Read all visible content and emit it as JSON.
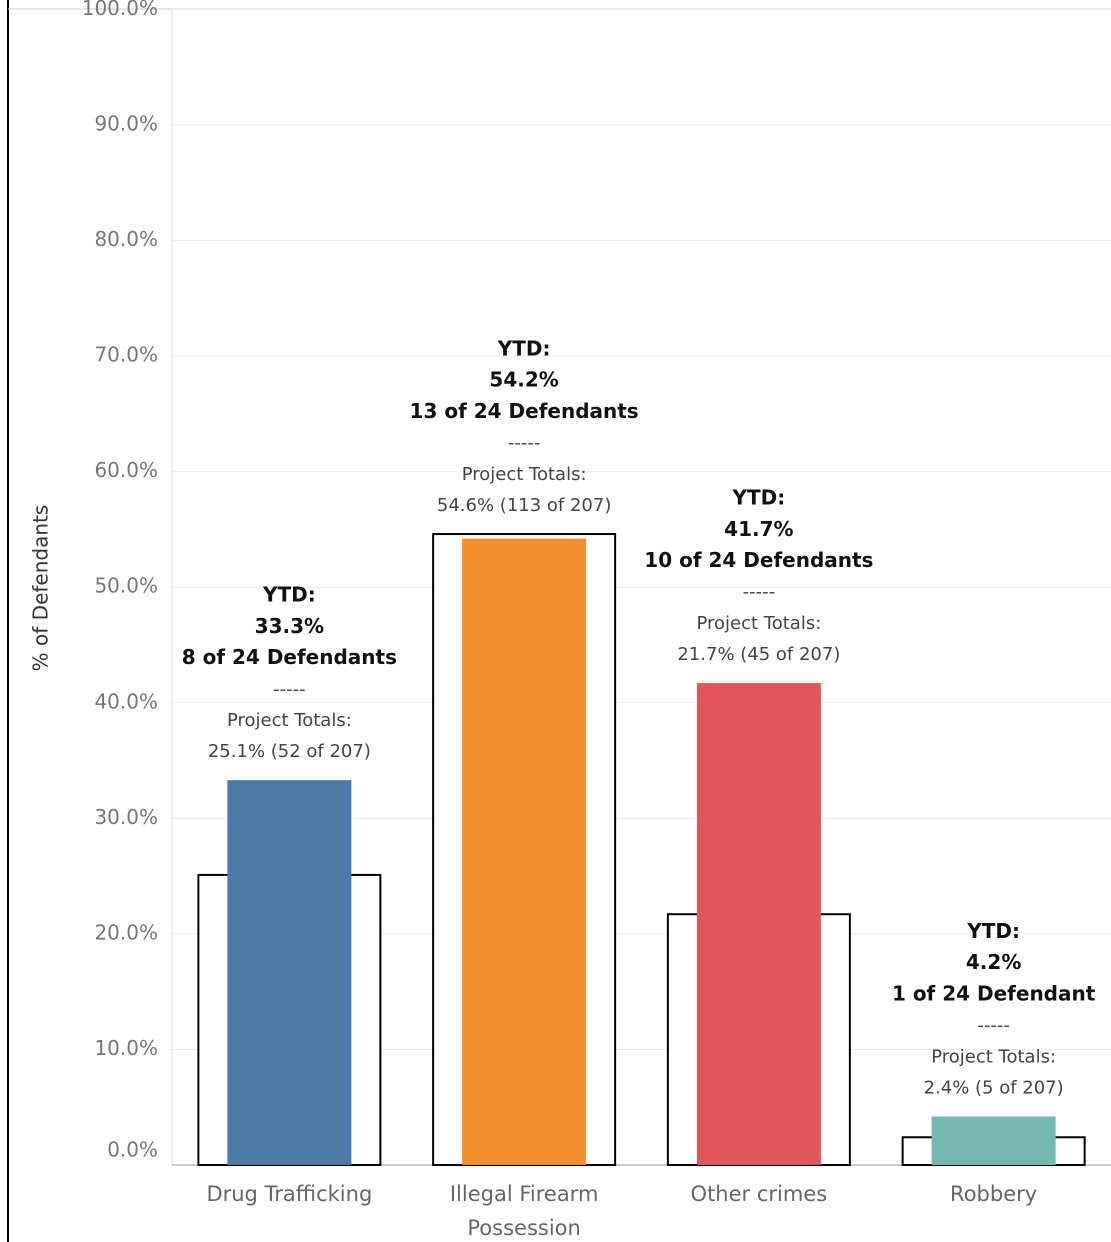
{
  "chart_data": {
    "type": "bar",
    "y_axis_label": "% of Defendants",
    "categories": [
      "Drug Trafficking",
      "Illegal Firearm Possession",
      "Other crimes",
      "Robbery"
    ],
    "separator": "-----",
    "series": [
      {
        "name": "YTD:",
        "colors": [
          "#4e79a7",
          "#f28e2b",
          "#e15759",
          "#76b7b2"
        ],
        "values": [
          33.3,
          54.2,
          41.7,
          4.2
        ],
        "value_labels": [
          "33.3%",
          "54.2%",
          "41.7%",
          "4.2%"
        ],
        "count_labels": [
          "8 of 24 Defendants",
          "13 of 24 Defendants",
          "10 of 24 Defendants",
          "1 of 24 Defendant"
        ]
      },
      {
        "name": "Project Totals:",
        "color": "#ffffff",
        "stroke": "#000000",
        "values": [
          25.1,
          54.6,
          21.7,
          2.4
        ],
        "value_labels": [
          "25.1% (52 of 207)",
          "54.6% (113 of 207)",
          "21.7% (45 of 207)",
          "2.4% (5 of 207)"
        ]
      }
    ],
    "ylim": [
      0,
      100
    ],
    "yticks": [
      {
        "value": 0,
        "label": "0.0%"
      },
      {
        "value": 10,
        "label": "10.0%"
      },
      {
        "value": 20,
        "label": "20.0%"
      },
      {
        "value": 30,
        "label": "30.0%"
      },
      {
        "value": 40,
        "label": "40.0%"
      },
      {
        "value": 50,
        "label": "50.0%"
      },
      {
        "value": 60,
        "label": "60.0%"
      },
      {
        "value": 70,
        "label": "70.0%"
      },
      {
        "value": 80,
        "label": "80.0%"
      },
      {
        "value": 90,
        "label": "90.0%"
      },
      {
        "value": 100,
        "label": "100.0%"
      }
    ],
    "grid": true
  }
}
